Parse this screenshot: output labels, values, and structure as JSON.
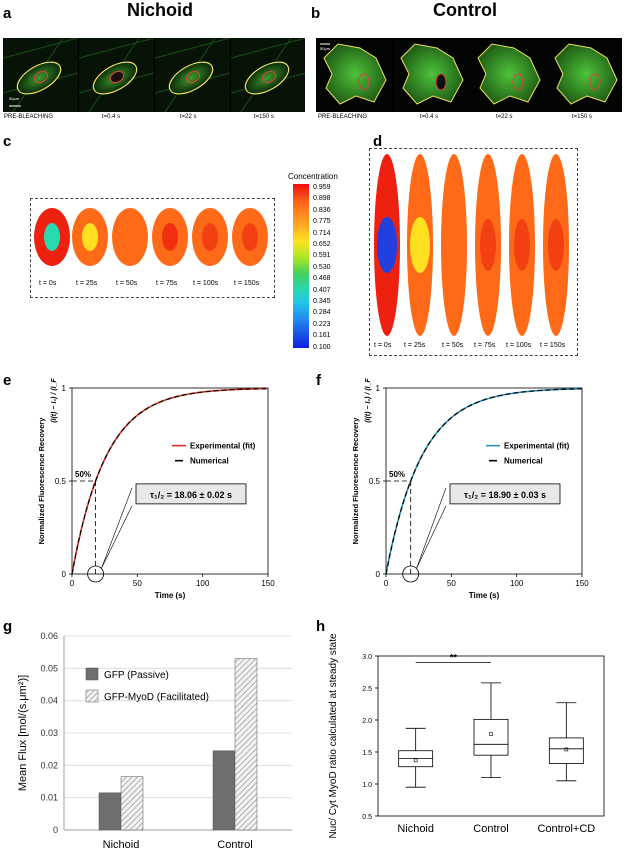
{
  "figure": {
    "panel_letters": [
      "a",
      "b",
      "c",
      "d",
      "e",
      "f",
      "g",
      "h"
    ],
    "headings": {
      "nichoid": "Nichoid",
      "control": "Control"
    },
    "scale_bar": "50μm",
    "microscopy_captions": [
      "PRE-BLEACHING",
      "t=0.4 s",
      "t=22 s",
      "t=150 s"
    ],
    "sim_c_labels": [
      "t = 0s",
      "t = 25s",
      "t = 50s",
      "t = 75s",
      "t = 100s",
      "t = 150s"
    ],
    "sim_d_labels": [
      "t = 0s",
      "t = 25s",
      "t = 50s",
      "t = 75s",
      "t = 100s",
      "t = 150s"
    ],
    "colorbar": {
      "title": "Concentration",
      "ticks": [
        "0.959",
        "0.898",
        "0.836",
        "0.775",
        "0.714",
        "0.652",
        "0.591",
        "0.530",
        "0.468",
        "0.407",
        "0.345",
        "0.284",
        "0.223",
        "0.161",
        "0.100"
      ]
    }
  },
  "chart_data": [
    {
      "id": "e",
      "type": "line",
      "ylabel": "Normalized Fluorescence Recovery",
      "ylabel_formula": "(I(t) − I₀) / (I_F − I₀)",
      "xlabel": "Time (s)",
      "xlim": [
        0,
        150
      ],
      "ylim": [
        0,
        1
      ],
      "xticks": [
        "0",
        "50",
        "100",
        "150"
      ],
      "yticks": [
        "0",
        "0.5",
        "1"
      ],
      "half_label": "50%",
      "t_half": 18.06,
      "annotation": "τ₁/₂ = 18.06 ± 0.02 s",
      "series": [
        {
          "name": "Experimental (fit)",
          "color": "#e03020"
        },
        {
          "name": "Numerical",
          "color": "#000000"
        }
      ]
    },
    {
      "id": "f",
      "type": "line",
      "ylabel": "Normalized Fluorescence Recovery",
      "ylabel_formula": "(I(t) − I₀) / (I_F − I₀)",
      "xlabel": "Time (s)",
      "xlim": [
        0,
        150
      ],
      "ylim": [
        0,
        1
      ],
      "xticks": [
        "0",
        "50",
        "100",
        "150"
      ],
      "yticks": [
        "0",
        "0.5",
        "1"
      ],
      "half_label": "50%",
      "t_half": 18.9,
      "annotation": "τ₁/₂ = 18.90 ± 0.03 s",
      "series": [
        {
          "name": "Experimental (fit)",
          "color": "#2a8fb8"
        },
        {
          "name": "Numerical",
          "color": "#000000"
        }
      ]
    },
    {
      "id": "g",
      "type": "bar",
      "ylabel": "Mean Flux [mol/(s.μm²)]",
      "categories": [
        "Nichoid",
        "Control"
      ],
      "ylim": [
        0,
        0.06
      ],
      "yticks": [
        "0",
        "0.01",
        "0.02",
        "0.03",
        "0.04",
        "0.05",
        "0.06"
      ],
      "series": [
        {
          "name": "GFP (Passive)",
          "values": [
            0.0115,
            0.0245
          ]
        },
        {
          "name": "GFP-MyoD (Facilitated)",
          "values": [
            0.0165,
            0.053
          ]
        }
      ]
    },
    {
      "id": "h",
      "type": "box",
      "ylabel": "Nuc/ Cyt MyoD ratio calculated at steady state",
      "categories": [
        "Nichoid",
        "Control",
        "Control+CD"
      ],
      "ylim": [
        0.5,
        3.0
      ],
      "yticks": [
        "0.5",
        "1.0",
        "1.5",
        "2.0",
        "2.5",
        "3.0"
      ],
      "significance": "**",
      "boxes": [
        {
          "min": 0.95,
          "q1": 1.27,
          "median": 1.4,
          "q3": 1.52,
          "max": 1.87,
          "mean": 1.37
        },
        {
          "min": 1.1,
          "q1": 1.45,
          "median": 1.62,
          "q3": 2.01,
          "max": 2.58,
          "mean": 1.78
        },
        {
          "min": 1.05,
          "q1": 1.32,
          "median": 1.55,
          "q3": 1.72,
          "max": 2.27,
          "mean": 1.54
        }
      ]
    }
  ]
}
